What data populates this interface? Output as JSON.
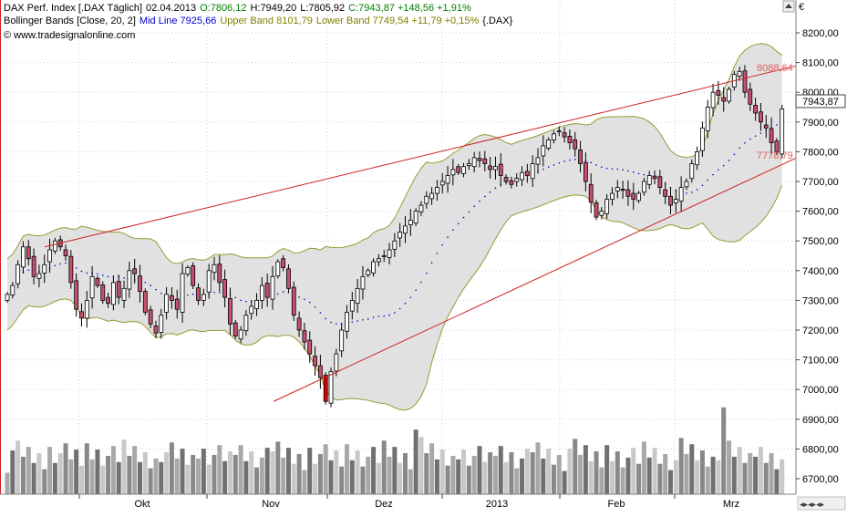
{
  "legend": {
    "line1": {
      "name": "DAX Perf. Index [.DAX  Täglich]",
      "date": "02.04.2013",
      "open": "O:7806,12",
      "high": "H:7949,20",
      "low": "L:7805,92",
      "close": "C:7943,87 +148,56 +1,91%"
    },
    "line2": {
      "name": "Bollinger Bands [Close, 20, 2]",
      "mid": "Mid Line 7925,66",
      "upper": "Upper Band 8101,79",
      "lower": "Lower Band 7749,54 +11,79 +0,15%",
      "sym": "{.DAX}"
    },
    "line3": "© www.tradesignalonline.com"
  },
  "colors": {
    "up": "#ffffff",
    "down": "#c8506e",
    "lastDown": "#e00000",
    "band": "#dcdcdc",
    "bandLine": "#9a9a30",
    "mid": "#0000c8",
    "trend": "#cc2222",
    "close": "#008000",
    "legendMid": "#0000c8",
    "legendUpper": "#808000",
    "legendLower": "#808000"
  },
  "chart_data": {
    "type": "candlestick",
    "currency": "€",
    "price_range": [
      6650,
      8290
    ],
    "ticks": [
      "8200,00",
      "8100,00",
      "8000,00",
      "7900,00",
      "7800,00",
      "7700,00",
      "7600,00",
      "7500,00",
      "7400,00",
      "7300,00",
      "7200,00",
      "7100,00",
      "7000,00",
      "6900,00",
      "6800,00",
      "6700,00"
    ],
    "months": [
      "Okt",
      "Nov",
      "Dez",
      "2013",
      "Feb",
      "Mrz"
    ],
    "last_price": "7943,87",
    "trend_labels": {
      "upper": "8088,64",
      "lower": "7778,79"
    },
    "closes": [
      7320,
      7350,
      7420,
      7480,
      7440,
      7380,
      7390,
      7420,
      7470,
      7500,
      7480,
      7450,
      7360,
      7270,
      7240,
      7300,
      7380,
      7350,
      7300,
      7290,
      7360,
      7310,
      7340,
      7400,
      7390,
      7330,
      7260,
      7220,
      7190,
      7250,
      7320,
      7300,
      7270,
      7390,
      7410,
      7350,
      7300,
      7320,
      7400,
      7420,
      7360,
      7310,
      7220,
      7180,
      7200,
      7250,
      7280,
      7300,
      7350,
      7310,
      7380,
      7430,
      7410,
      7340,
      7250,
      7200,
      7160,
      7120,
      7080,
      7040,
      6960,
      7060,
      7120,
      7200,
      7260,
      7300,
      7340,
      7380,
      7400,
      7430,
      7440,
      7450,
      7470,
      7500,
      7530,
      7550,
      7570,
      7600,
      7620,
      7650,
      7660,
      7680,
      7700,
      7720,
      7740,
      7730,
      7750,
      7760,
      7780,
      7770,
      7760,
      7740,
      7750,
      7720,
      7700,
      7690,
      7710,
      7730,
      7720,
      7760,
      7780,
      7820,
      7840,
      7860,
      7870,
      7850,
      7830,
      7810,
      7760,
      7700,
      7630,
      7580,
      7600,
      7640,
      7660,
      7680,
      7670,
      7650,
      7640,
      7660,
      7700,
      7720,
      7710,
      7680,
      7650,
      7620,
      7640,
      7680,
      7700,
      7760,
      7800,
      7880,
      7950,
      8000,
      7990,
      7970,
      8010,
      8060,
      8070,
      8000,
      7960,
      7930,
      7900,
      7880,
      7830,
      7800,
      7943.87
    ],
    "volume_max": 6940,
    "volume_base": 6650
  }
}
